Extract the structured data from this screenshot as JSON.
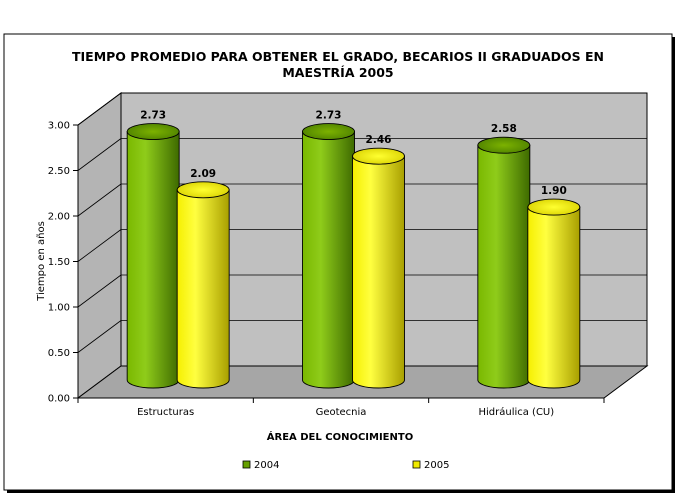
{
  "chart_data": {
    "type": "bar",
    "title_lines": [
      "TIEMPO PROMEDIO PARA OBTENER EL GRADO, BECARIOS II GRADUADOS EN",
      "MAESTRÍA 2005"
    ],
    "categories": [
      "Estructuras",
      "Geotecnia",
      "Hidráulica (CU)"
    ],
    "series": [
      {
        "name": "2004",
        "values": [
          2.73,
          2.73,
          2.58
        ],
        "labels": [
          "2.73",
          "2.73",
          "2.58"
        ],
        "color": "#66a000"
      },
      {
        "name": "2005",
        "values": [
          2.09,
          2.46,
          1.9
        ],
        "labels": [
          "2.09",
          "2.46",
          "1.90"
        ],
        "color": "#f0ea00"
      }
    ],
    "xlabel": "ÁREA DEL CONOCIMIENTO",
    "ylabel": "Tiempo en años",
    "ylim": [
      0,
      3
    ],
    "yticks": [
      "0.00",
      "0.50",
      "1.00",
      "1.50",
      "2.00",
      "2.50",
      "3.00"
    ],
    "grid": true,
    "legend_position": "bottom",
    "colors": {
      "wall": "#c0c0c0",
      "floor": "#a6a6a6",
      "frame": "#000000"
    }
  }
}
